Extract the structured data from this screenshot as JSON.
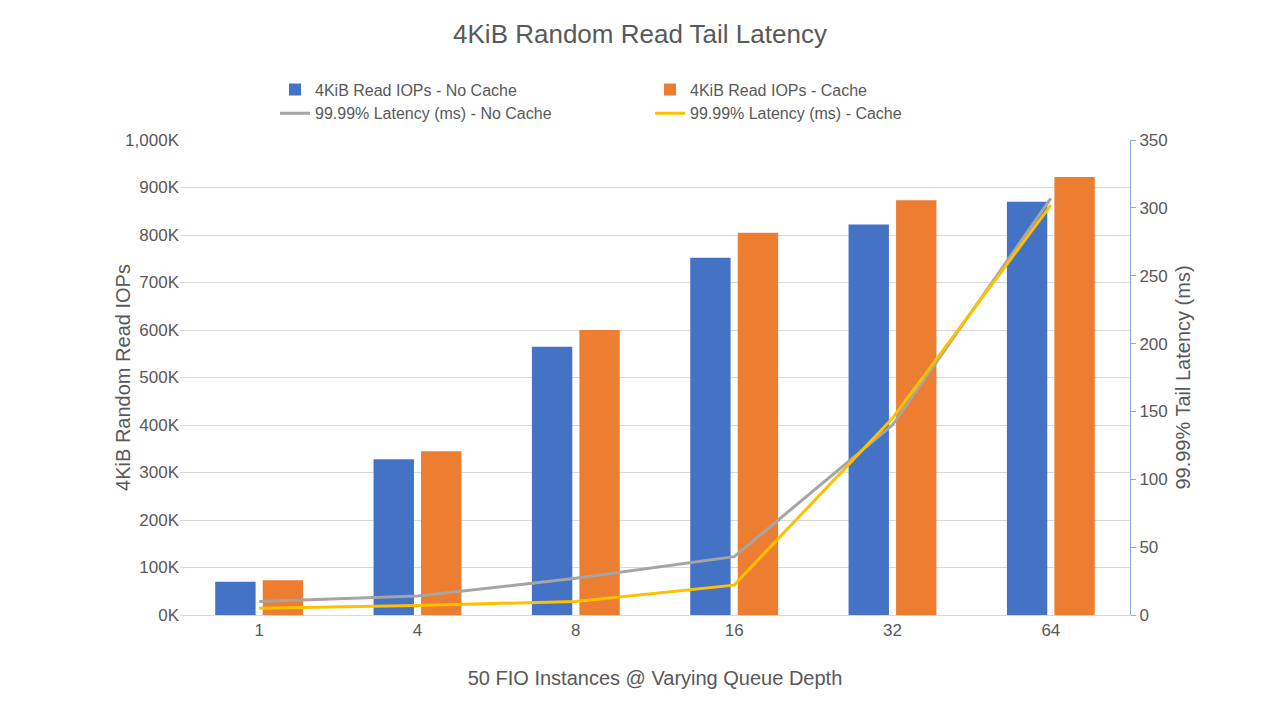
{
  "chart_data": {
    "type": "bar",
    "title": "4KiB Random Read Tail Latency",
    "x_label": "50 FIO Instances @ Varying Queue Depth",
    "y_label": "4KiB Random Read IOPs",
    "y2_label": "99.99% Tail Latency (ms)",
    "categories": [
      "1",
      "4",
      "8",
      "16",
      "32",
      "64"
    ],
    "series": [
      {
        "name": "4KiB Read IOPs - No Cache",
        "type": "bar",
        "color": "#4472c4",
        "values": [
          70000,
          328000,
          565000,
          752000,
          822000,
          870000
        ]
      },
      {
        "name": "4KiB Read IOPs - Cache",
        "type": "bar",
        "color": "#ed7d31",
        "values": [
          73000,
          345000,
          600000,
          805000,
          873000,
          922000
        ]
      },
      {
        "name": "99.99% Latency (ms) - No Cache",
        "type": "line",
        "axis": "y2",
        "color": "#a5a5a5",
        "values": [
          10,
          14,
          27,
          43,
          140,
          307
        ]
      },
      {
        "name": "99.99% Latency (ms) - Cache",
        "type": "line",
        "axis": "y2",
        "color": "#ffc000",
        "values": [
          5,
          7,
          10,
          22,
          145,
          302
        ]
      }
    ],
    "ylim": [
      0,
      1000000
    ],
    "yticks": [
      {
        "value": 0,
        "label": "0K"
      },
      {
        "value": 100000,
        "label": "100K"
      },
      {
        "value": 200000,
        "label": "200K"
      },
      {
        "value": 300000,
        "label": "300K"
      },
      {
        "value": 400000,
        "label": "400K"
      },
      {
        "value": 500000,
        "label": "500K"
      },
      {
        "value": 600000,
        "label": "600K"
      },
      {
        "value": 700000,
        "label": "700K"
      },
      {
        "value": 800000,
        "label": "800K"
      },
      {
        "value": 900000,
        "label": "900K"
      },
      {
        "value": 1000000,
        "label": "1,000K"
      }
    ],
    "y2lim": [
      0,
      350
    ],
    "y2ticks": [
      0,
      50,
      100,
      150,
      200,
      250,
      300,
      350
    ],
    "grid": true,
    "legend": "top"
  }
}
